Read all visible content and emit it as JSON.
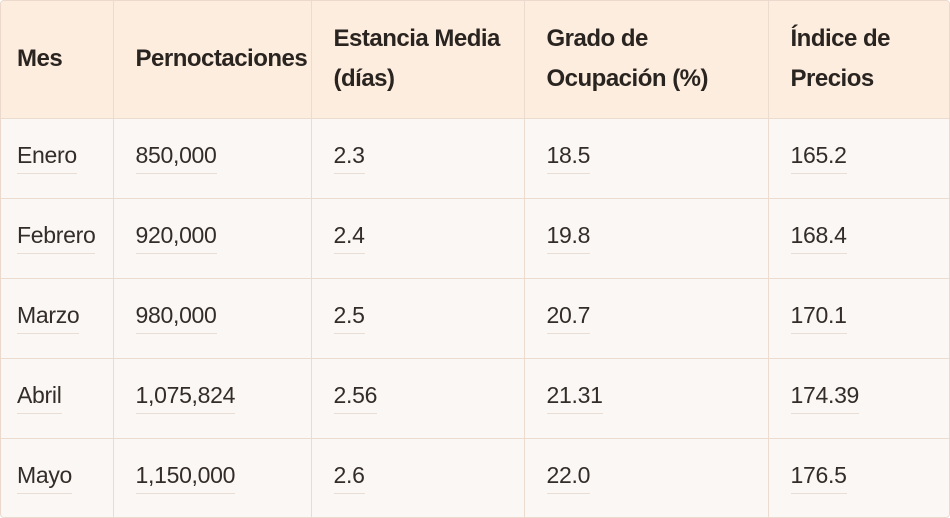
{
  "table": {
    "headers": [
      "Mes",
      "Pernoctaciones",
      "Estancia Media\n(días)",
      "Grado de\nOcupación (%)",
      "Índice de\nPrecios"
    ],
    "rows": [
      [
        "Enero",
        "850,000",
        "2.3",
        "18.5",
        "165.2"
      ],
      [
        "Febrero",
        "920,000",
        "2.4",
        "19.8",
        "168.4"
      ],
      [
        "Marzo",
        "980,000",
        "2.5",
        "20.7",
        "170.1"
      ],
      [
        "Abril",
        "1,075,824",
        "2.56",
        "21.31",
        "174.39"
      ],
      [
        "Mayo",
        "1,150,000",
        "2.6",
        "22.0",
        "176.5"
      ]
    ]
  },
  "colors": {
    "header_background": "#fdeddf",
    "row_background": "#faf7f4",
    "border": "#ecdcd0",
    "text": "#2c2623"
  }
}
